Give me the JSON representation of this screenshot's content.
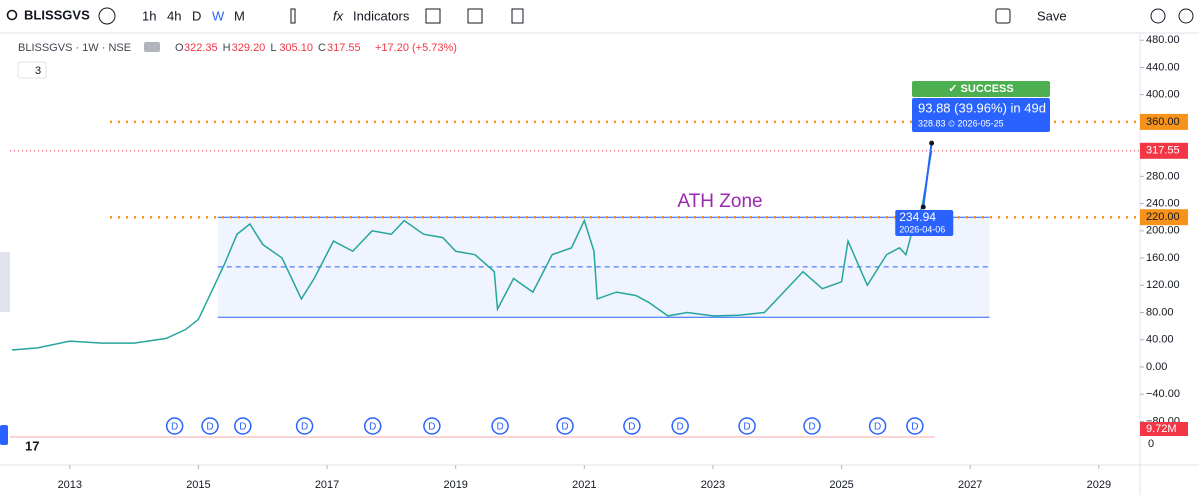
{
  "toolbar": {
    "symbol": "BLISSGVS",
    "intervals": [
      "1h",
      "4h",
      "D",
      "W",
      "M"
    ],
    "indicators": "Indicators",
    "save": "Save"
  },
  "legend": {
    "title": "BLISSGVS · 1W · NSE",
    "ohlc": [
      {
        "key": "O",
        "value": "322.35"
      },
      {
        "key": "H",
        "value": "329.20"
      },
      {
        "key": "L",
        "value": "305.10"
      },
      {
        "key": "C",
        "value": "317.55"
      }
    ],
    "change": "+17.20 (+5.73%)",
    "collapsed": "3"
  },
  "chart_data": {
    "type": "line",
    "xlim": [
      2012.07,
      2029.64
    ],
    "ylim": [
      -144,
      495
    ],
    "xticks": [
      2013,
      2015,
      2017,
      2019,
      2021,
      2023,
      2025,
      2027,
      2029
    ],
    "yticks": [
      {
        "value": 480,
        "label": "480.00"
      },
      {
        "value": 440,
        "label": "440.00"
      },
      {
        "value": 400,
        "label": "400.00"
      },
      {
        "value": 360,
        "label": "360.00"
      },
      {
        "value": 320,
        "label": "320.00"
      },
      {
        "value": 280,
        "label": "280.00"
      },
      {
        "value": 240,
        "label": "240.00"
      },
      {
        "value": 200,
        "label": "200.00"
      },
      {
        "value": 160,
        "label": "160.00"
      },
      {
        "value": 120,
        "label": "120.00"
      },
      {
        "value": 80,
        "label": "80.00"
      },
      {
        "value": 40,
        "label": "40.00"
      },
      {
        "value": 0,
        "label": "0.00"
      },
      {
        "value": -40,
        "label": "−40.00"
      },
      {
        "value": -80,
        "label": "−80.00"
      }
    ],
    "series": [
      {
        "name": "BLISSGVS",
        "color": "#26a69a",
        "x": [
          2012.1,
          2012.5,
          2013.0,
          2013.5,
          2014.0,
          2014.5,
          2014.8,
          2015.0,
          2015.2,
          2015.4,
          2015.6,
          2015.8,
          2016.0,
          2016.3,
          2016.6,
          2016.8,
          2017.1,
          2017.4,
          2017.7,
          2018.0,
          2018.2,
          2018.5,
          2018.8,
          2019.0,
          2019.3,
          2019.6,
          2019.65,
          2019.9,
          2020.2,
          2020.5,
          2020.8,
          2021.0,
          2021.15,
          2021.2,
          2021.5,
          2021.8,
          2022.0,
          2022.3,
          2022.6,
          2023.0,
          2023.4,
          2023.8,
          2024.1,
          2024.4,
          2024.7,
          2025.0,
          2025.1,
          2025.4,
          2025.7,
          2025.9,
          2026.0,
          2026.1,
          2026.25,
          2026.4
        ],
        "values": [
          25,
          28,
          38,
          35,
          35,
          42,
          55,
          70,
          110,
          150,
          195,
          210,
          180,
          160,
          100,
          130,
          185,
          170,
          200,
          195,
          215,
          195,
          190,
          170,
          165,
          140,
          85,
          130,
          110,
          165,
          175,
          215,
          170,
          100,
          110,
          105,
          95,
          75,
          80,
          75,
          76,
          80,
          110,
          140,
          115,
          125,
          185,
          120,
          165,
          175,
          165,
          200,
          235,
          317.55
        ]
      }
    ],
    "levels": [
      {
        "value": 360,
        "label": "360.00",
        "color": "#f7931a"
      },
      {
        "value": 220,
        "label": "220.00",
        "color": "#f7931a"
      }
    ],
    "last_price": {
      "value": 317.55,
      "label": "317.55",
      "color": "#f23645"
    },
    "zone": {
      "label": "ATH Zone",
      "top": 220,
      "bottom": 73,
      "mid": 147,
      "x": [
        2015.3,
        2027.3
      ]
    },
    "trade": {
      "status": "✓ SUCCESS",
      "result": "93.88 (39.96%) in 49d",
      "target": 328.83,
      "target_text": "328.83 ⏲ 2026-05-25",
      "target_x": 2026.4,
      "entry": 234.94,
      "entry_label": "234.94",
      "entry_date": "2026-04-06",
      "entry_x": 2026.27
    },
    "dividends": {
      "label": "D",
      "x": [
        2014.63,
        2015.18,
        2015.69,
        2016.65,
        2017.71,
        2018.63,
        2019.69,
        2020.7,
        2021.74,
        2022.49,
        2023.53,
        2024.54,
        2025.56,
        2026.14
      ]
    },
    "volume_label": "9.72M",
    "volume_axis_label": "0"
  }
}
